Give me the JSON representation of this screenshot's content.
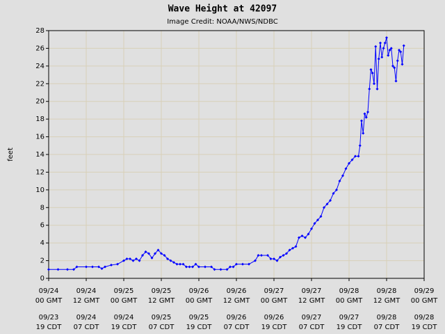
{
  "chart_data": {
    "type": "line",
    "title": "Wave Height at 42097",
    "subtitle": "Image Credit: NOAA/NWS/NDBC",
    "ylabel": "feet",
    "ylim": [
      0,
      28
    ],
    "yticks": [
      0,
      2,
      4,
      6,
      8,
      10,
      12,
      14,
      16,
      18,
      20,
      22,
      24,
      26,
      28
    ],
    "xlim": [
      0,
      120
    ],
    "xticks": [
      {
        "value": 0,
        "label": [
          "09/24",
          "00 GMT"
        ]
      },
      {
        "value": 12,
        "label": [
          "09/24",
          "12 GMT"
        ]
      },
      {
        "value": 24,
        "label": [
          "09/25",
          "00 GMT"
        ]
      },
      {
        "value": 36,
        "label": [
          "09/25",
          "12 GMT"
        ]
      },
      {
        "value": 48,
        "label": [
          "09/26",
          "00 GMT"
        ]
      },
      {
        "value": 60,
        "label": [
          "09/26",
          "12 GMT"
        ]
      },
      {
        "value": 72,
        "label": [
          "09/27",
          "00 GMT"
        ]
      },
      {
        "value": 84,
        "label": [
          "09/27",
          "12 GMT"
        ]
      },
      {
        "value": 96,
        "label": [
          "09/28",
          "00 GMT"
        ]
      },
      {
        "value": 108,
        "label": [
          "09/28",
          "12 GMT"
        ]
      },
      {
        "value": 120,
        "label": [
          "09/29",
          "00 GMT"
        ]
      }
    ],
    "xticks_local": [
      [
        "09/23",
        "19 CDT"
      ],
      [
        "09/24",
        "07 CDT"
      ],
      [
        "09/24",
        "19 CDT"
      ],
      [
        "09/25",
        "07 CDT"
      ],
      [
        "09/25",
        "19 CDT"
      ],
      [
        "09/26",
        "07 CDT"
      ],
      [
        "09/26",
        "19 CDT"
      ],
      [
        "09/27",
        "07 CDT"
      ],
      [
        "09/27",
        "19 CDT"
      ],
      [
        "09/28",
        "07 CDT"
      ],
      [
        "09/28",
        "19 CDT"
      ]
    ],
    "grid": true,
    "series": [
      {
        "name": "Wave Height",
        "color": "#0000ff",
        "x": [
          0,
          3,
          6,
          8,
          9,
          12,
          14,
          16,
          17,
          18,
          20,
          22,
          24,
          25,
          26,
          27,
          28,
          29,
          30,
          31,
          32,
          33,
          34,
          35,
          36,
          37,
          38,
          39,
          40,
          41,
          42,
          43,
          44,
          45,
          46,
          47,
          48,
          50,
          52,
          53,
          55,
          57,
          58,
          59,
          60,
          62,
          64,
          66,
          67,
          68,
          70,
          71,
          72,
          73,
          74,
          75,
          76,
          77,
          78,
          79,
          80,
          81,
          82,
          83,
          84,
          85,
          86,
          87,
          88,
          89,
          90,
          91,
          92,
          93,
          94,
          95,
          96,
          97,
          98,
          99,
          99.5,
          100,
          100.5,
          101,
          101.5,
          102,
          102.5,
          103,
          103.5,
          104,
          104.5,
          105,
          105.5,
          106,
          106.5,
          107,
          107.5,
          108,
          108.5,
          109,
          109.5,
          110,
          110.5,
          111,
          111.5,
          112,
          112.5,
          113,
          113.5
        ],
        "values": [
          1.0,
          1.0,
          1.0,
          1.0,
          1.3,
          1.3,
          1.3,
          1.3,
          1.1,
          1.3,
          1.5,
          1.6,
          2.0,
          2.2,
          2.2,
          2.0,
          2.2,
          2.0,
          2.6,
          3.0,
          2.8,
          2.3,
          2.8,
          3.2,
          2.8,
          2.6,
          2.2,
          2.0,
          1.8,
          1.6,
          1.6,
          1.6,
          1.3,
          1.3,
          1.3,
          1.6,
          1.3,
          1.3,
          1.3,
          1.0,
          1.0,
          1.0,
          1.3,
          1.3,
          1.6,
          1.6,
          1.6,
          2.0,
          2.6,
          2.6,
          2.6,
          2.2,
          2.2,
          2.0,
          2.4,
          2.6,
          2.8,
          3.2,
          3.4,
          3.6,
          4.6,
          4.8,
          4.6,
          5.0,
          5.6,
          6.2,
          6.6,
          7.0,
          8.0,
          8.4,
          8.8,
          9.6,
          10.0,
          11.0,
          11.6,
          12.4,
          13.0,
          13.4,
          13.8,
          13.8,
          15.0,
          17.8,
          16.4,
          18.6,
          18.2,
          18.8,
          21.4,
          23.6,
          23.2,
          22.0,
          26.2,
          21.4,
          24.8,
          26.6,
          25.0,
          26.0,
          26.6,
          27.2,
          25.2,
          25.8,
          26.0,
          24.0,
          23.8,
          22.3,
          24.6,
          25.8,
          25.6,
          24.2,
          26.3
        ]
      }
    ]
  }
}
